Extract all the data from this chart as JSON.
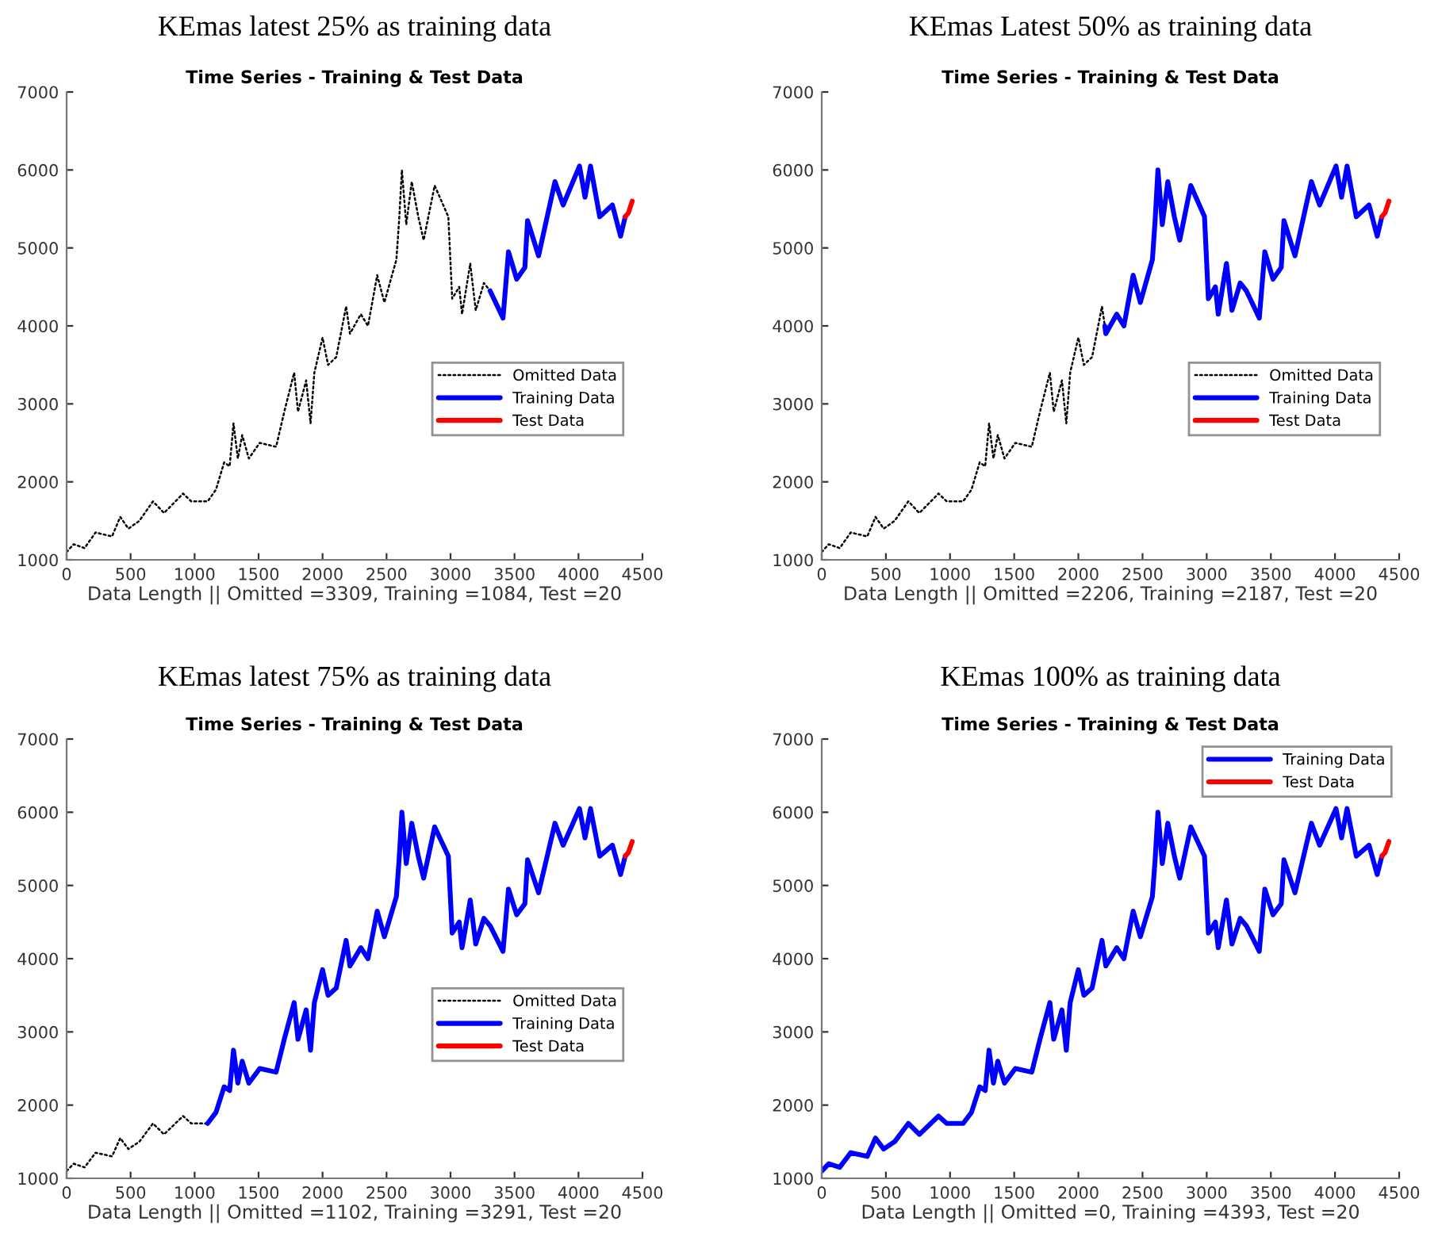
{
  "chart_data": [
    {
      "type": "line",
      "title": "KEmas latest 25% as training data",
      "subtitle": "Time Series - Training & Test Data",
      "xlabel": "Data Length || Omitted =3309, Training =1084, Test =20",
      "xlim": [
        0,
        4500
      ],
      "xticks": [
        0,
        500,
        1000,
        1500,
        2000,
        2500,
        3000,
        3500,
        4000,
        4500
      ],
      "ylim": [
        1000,
        7000
      ],
      "yticks": [
        1000,
        2000,
        3000,
        4000,
        5000,
        6000,
        7000
      ],
      "legend": "lower right",
      "series": [
        {
          "name": "Omitted Data",
          "color": "#000000",
          "line_style": "dotted",
          "x": [
            0,
            55,
            140,
            226,
            355,
            419,
            483,
            568,
            675,
            761,
            910,
            974,
            1102,
            1167,
            1231,
            1274,
            1304,
            1338,
            1372,
            1424,
            1509,
            1637,
            1701,
            1778,
            1808,
            1872,
            1906,
            1936,
            2000,
            2043,
            2107,
            2184,
            2206,
            2214,
            2299,
            2355,
            2427,
            2483,
            2577,
            2598,
            2620,
            2654,
            2697,
            2748,
            2790,
            2876,
            2983,
            3013,
            3068,
            3090,
            3154,
            3197,
            3261,
            3309
          ],
          "values": [
            1100,
            1200,
            1150,
            1350,
            1300,
            1550,
            1400,
            1500,
            1750,
            1600,
            1850,
            1750,
            1750,
            1900,
            2250,
            2200,
            2750,
            2300,
            2600,
            2300,
            2500,
            2450,
            2900,
            3400,
            2900,
            3300,
            2750,
            3400,
            3850,
            3500,
            3600,
            4250,
            4000,
            3900,
            4150,
            4000,
            4650,
            4300,
            4850,
            5350,
            6000,
            5300,
            5850,
            5400,
            5100,
            5800,
            5400,
            4350,
            4500,
            4150,
            4800,
            4200,
            4550,
            4450
          ]
        },
        {
          "name": "Training Data",
          "color": "#0000ff",
          "line_style": "solid",
          "x": [
            3309,
            3367,
            3410,
            3453,
            3517,
            3581,
            3602,
            3688,
            3816,
            3880,
            4008,
            4051,
            4094,
            4166,
            4265,
            4329,
            4365
          ],
          "values": [
            4450,
            4250,
            4100,
            4950,
            4600,
            4750,
            5350,
            4900,
            5850,
            5550,
            6050,
            5650,
            6050,
            5400,
            5550,
            5150,
            5400
          ]
        },
        {
          "name": "Test Data",
          "color": "#ff0000",
          "line_style": "solid",
          "x": [
            4365,
            4390,
            4420
          ],
          "values": [
            5400,
            5450,
            5600
          ]
        }
      ]
    },
    {
      "type": "line",
      "title": "KEmas Latest 50% as training data",
      "subtitle": "Time Series - Training & Test Data",
      "xlabel": "Data Length || Omitted =2206, Training =2187, Test =20",
      "xlim": [
        0,
        4500
      ],
      "xticks": [
        0,
        500,
        1000,
        1500,
        2000,
        2500,
        3000,
        3500,
        4000,
        4500
      ],
      "ylim": [
        1000,
        7000
      ],
      "yticks": [
        1000,
        2000,
        3000,
        4000,
        5000,
        6000,
        7000
      ],
      "legend": "lower right",
      "series": [
        {
          "name": "Omitted Data",
          "color": "#000000",
          "line_style": "dotted",
          "x": [
            0,
            55,
            140,
            226,
            355,
            419,
            483,
            568,
            675,
            761,
            910,
            974,
            1102,
            1167,
            1231,
            1274,
            1304,
            1338,
            1372,
            1424,
            1509,
            1637,
            1701,
            1778,
            1808,
            1872,
            1906,
            1936,
            2000,
            2043,
            2107,
            2184,
            2206
          ],
          "values": [
            1100,
            1200,
            1150,
            1350,
            1300,
            1550,
            1400,
            1500,
            1750,
            1600,
            1850,
            1750,
            1750,
            1900,
            2250,
            2200,
            2750,
            2300,
            2600,
            2300,
            2500,
            2450,
            2900,
            3400,
            2900,
            3300,
            2750,
            3400,
            3850,
            3500,
            3600,
            4250,
            4000
          ]
        },
        {
          "name": "Training Data",
          "color": "#0000ff",
          "line_style": "solid",
          "x": [
            2206,
            2214,
            2299,
            2355,
            2427,
            2483,
            2577,
            2598,
            2620,
            2654,
            2697,
            2748,
            2790,
            2876,
            2983,
            3013,
            3068,
            3090,
            3154,
            3197,
            3261,
            3309,
            3367,
            3410,
            3453,
            3517,
            3581,
            3602,
            3688,
            3816,
            3880,
            4008,
            4051,
            4094,
            4166,
            4265,
            4329,
            4365
          ],
          "values": [
            4000,
            3900,
            4150,
            4000,
            4650,
            4300,
            4850,
            5350,
            6000,
            5300,
            5850,
            5400,
            5100,
            5800,
            5400,
            4350,
            4500,
            4150,
            4800,
            4200,
            4550,
            4450,
            4250,
            4100,
            4950,
            4600,
            4750,
            5350,
            4900,
            5850,
            5550,
            6050,
            5650,
            6050,
            5400,
            5550,
            5150,
            5400
          ]
        },
        {
          "name": "Test Data",
          "color": "#ff0000",
          "line_style": "solid",
          "x": [
            4365,
            4390,
            4420
          ],
          "values": [
            5400,
            5450,
            5600
          ]
        }
      ]
    },
    {
      "type": "line",
      "title": "KEmas latest 75% as training data",
      "subtitle": "Time Series - Training & Test Data",
      "xlabel": "Data Length || Omitted =1102, Training =3291, Test =20",
      "xlim": [
        0,
        4500
      ],
      "xticks": [
        0,
        500,
        1000,
        1500,
        2000,
        2500,
        3000,
        3500,
        4000,
        4500
      ],
      "ylim": [
        1000,
        7000
      ],
      "yticks": [
        1000,
        2000,
        3000,
        4000,
        5000,
        6000,
        7000
      ],
      "legend": "lower right",
      "series": [
        {
          "name": "Omitted Data",
          "color": "#000000",
          "line_style": "dotted",
          "x": [
            0,
            55,
            140,
            226,
            355,
            419,
            483,
            568,
            675,
            761,
            910,
            974,
            1102
          ],
          "values": [
            1100,
            1200,
            1150,
            1350,
            1300,
            1550,
            1400,
            1500,
            1750,
            1600,
            1850,
            1750,
            1750
          ]
        },
        {
          "name": "Training Data",
          "color": "#0000ff",
          "line_style": "solid",
          "x": [
            1102,
            1167,
            1231,
            1274,
            1304,
            1338,
            1372,
            1424,
            1509,
            1637,
            1701,
            1778,
            1808,
            1872,
            1906,
            1936,
            2000,
            2043,
            2107,
            2184,
            2206,
            2214,
            2299,
            2355,
            2427,
            2483,
            2577,
            2598,
            2620,
            2654,
            2697,
            2748,
            2790,
            2876,
            2983,
            3013,
            3068,
            3090,
            3154,
            3197,
            3261,
            3309,
            3367,
            3410,
            3453,
            3517,
            3581,
            3602,
            3688,
            3816,
            3880,
            4008,
            4051,
            4094,
            4166,
            4265,
            4329,
            4365
          ],
          "values": [
            1750,
            1900,
            2250,
            2200,
            2750,
            2300,
            2600,
            2300,
            2500,
            2450,
            2900,
            3400,
            2900,
            3300,
            2750,
            3400,
            3850,
            3500,
            3600,
            4250,
            4000,
            3900,
            4150,
            4000,
            4650,
            4300,
            4850,
            5350,
            6000,
            5300,
            5850,
            5400,
            5100,
            5800,
            5400,
            4350,
            4500,
            4150,
            4800,
            4200,
            4550,
            4450,
            4250,
            4100,
            4950,
            4600,
            4750,
            5350,
            4900,
            5850,
            5550,
            6050,
            5650,
            6050,
            5400,
            5550,
            5150,
            5400
          ]
        },
        {
          "name": "Test Data",
          "color": "#ff0000",
          "line_style": "solid",
          "x": [
            4365,
            4390,
            4420
          ],
          "values": [
            5400,
            5450,
            5600
          ]
        }
      ]
    },
    {
      "type": "line",
      "title": "KEmas 100% as training data",
      "subtitle": "Time Series - Training & Test Data",
      "xlabel": "Data Length || Omitted =0, Training =4393, Test =20",
      "xlim": [
        0,
        4500
      ],
      "xticks": [
        0,
        500,
        1000,
        1500,
        2000,
        2500,
        3000,
        3500,
        4000,
        4500
      ],
      "ylim": [
        1000,
        7000
      ],
      "yticks": [
        1000,
        2000,
        3000,
        4000,
        5000,
        6000,
        7000
      ],
      "legend": "upper right",
      "series": [
        {
          "name": "Training Data",
          "color": "#0000ff",
          "line_style": "solid",
          "x": [
            0,
            55,
            140,
            226,
            355,
            419,
            483,
            568,
            675,
            761,
            910,
            974,
            1102,
            1167,
            1231,
            1274,
            1304,
            1338,
            1372,
            1424,
            1509,
            1637,
            1701,
            1778,
            1808,
            1872,
            1906,
            1936,
            2000,
            2043,
            2107,
            2184,
            2206,
            2214,
            2299,
            2355,
            2427,
            2483,
            2577,
            2598,
            2620,
            2654,
            2697,
            2748,
            2790,
            2876,
            2983,
            3013,
            3068,
            3090,
            3154,
            3197,
            3261,
            3309,
            3367,
            3410,
            3453,
            3517,
            3581,
            3602,
            3688,
            3816,
            3880,
            4008,
            4051,
            4094,
            4166,
            4265,
            4329,
            4365
          ],
          "values": [
            1100,
            1200,
            1150,
            1350,
            1300,
            1550,
            1400,
            1500,
            1750,
            1600,
            1850,
            1750,
            1750,
            1900,
            2250,
            2200,
            2750,
            2300,
            2600,
            2300,
            2500,
            2450,
            2900,
            3400,
            2900,
            3300,
            2750,
            3400,
            3850,
            3500,
            3600,
            4250,
            4000,
            3900,
            4150,
            4000,
            4650,
            4300,
            4850,
            5350,
            6000,
            5300,
            5850,
            5400,
            5100,
            5800,
            5400,
            4350,
            4500,
            4150,
            4800,
            4200,
            4550,
            4450,
            4250,
            4100,
            4950,
            4600,
            4750,
            5350,
            4900,
            5850,
            5550,
            6050,
            5650,
            6050,
            5400,
            5550,
            5150,
            5400
          ]
        },
        {
          "name": "Test Data",
          "color": "#ff0000",
          "line_style": "solid",
          "x": [
            4365,
            4390,
            4420
          ],
          "values": [
            5400,
            5450,
            5600
          ]
        }
      ]
    }
  ]
}
